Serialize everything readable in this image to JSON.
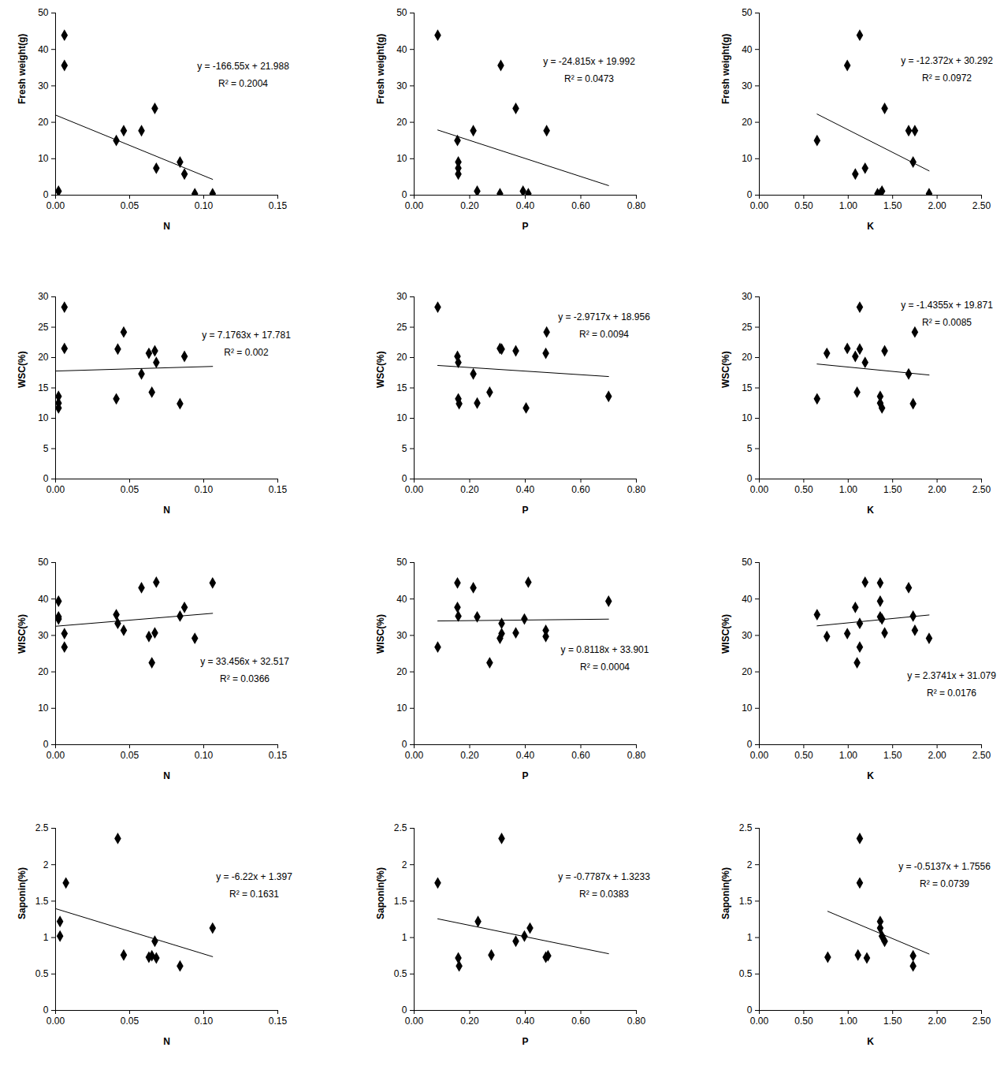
{
  "chart_data": [
    {
      "type": "scatter",
      "x_label": "N",
      "y_label": "Fresh weight(g)",
      "color": "#000000",
      "marker": "diamond",
      "x": [
        0.002,
        0.006,
        0.006,
        0.046,
        0.041,
        0.058,
        0.067,
        0.068,
        0.084,
        0.087,
        0.094,
        0.106
      ],
      "y": [
        1.1,
        43.9,
        35.6,
        17.7,
        15.0,
        17.7,
        23.8,
        7.4,
        9.1,
        5.8,
        0.4,
        0.4
      ],
      "xlim": [
        0,
        0.15
      ],
      "xticks": [
        {
          "value": 0,
          "label": "0.00"
        },
        0.05,
        {
          "value": 0.1,
          "label": "0.10"
        },
        0.15
      ],
      "ylim": [
        0,
        50
      ],
      "yticks": [
        0,
        10,
        20,
        30,
        40,
        50
      ],
      "trendline": {
        "slope": -166.55,
        "intercept": 21.988,
        "x": [
          0,
          0.106
        ]
      },
      "annotations": [
        "y = -166.55x + 21.988",
        "R² = 0.2004"
      ]
    },
    {
      "type": "scatter",
      "x_label": "P",
      "y_label": "Fresh weight(g)",
      "color": "#000000",
      "marker": "diamond",
      "x": [
        0.085,
        0.156,
        0.159,
        0.159,
        0.159,
        0.213,
        0.227,
        0.312,
        0.309,
        0.366,
        0.392,
        0.411,
        0.477
      ],
      "y": [
        43.9,
        15.0,
        9.1,
        7.4,
        5.8,
        17.7,
        1.1,
        35.6,
        0.4,
        23.8,
        1.1,
        0.4,
        17.7
      ],
      "xlim": [
        0,
        0.8
      ],
      "xticks": [
        {
          "value": 0,
          "label": "0.00"
        },
        {
          "value": 0.2,
          "label": "0.20"
        },
        {
          "value": 0.4,
          "label": "0.40"
        },
        {
          "value": 0.6,
          "label": "0.60"
        },
        {
          "value": 0.8,
          "label": "0.80"
        }
      ],
      "ylim": [
        0,
        50
      ],
      "yticks": [
        0,
        10,
        20,
        30,
        40,
        50
      ],
      "trendline": {
        "slope": -24.815,
        "intercept": 19.992,
        "x": [
          0.085,
          0.7
        ]
      },
      "annotations": [
        "y = -24.815x + 19.992",
        "R² = 0.0473"
      ]
    },
    {
      "type": "scatter",
      "x_label": "K",
      "y_label": "Fresh weight(g)",
      "color": "#000000",
      "marker": "diamond",
      "x": [
        0.65,
        0.99,
        1.13,
        1.08,
        1.19,
        1.36,
        1.38,
        1.33,
        1.41,
        1.68,
        1.75,
        1.73,
        1.91
      ],
      "y": [
        15.0,
        35.6,
        43.9,
        5.8,
        7.4,
        0.4,
        1.1,
        0.4,
        23.8,
        17.7,
        17.7,
        9.1,
        0.4
      ],
      "xlim": [
        0,
        2.5
      ],
      "xticks": [
        {
          "value": 0,
          "label": "0.00"
        },
        {
          "value": 0.5,
          "label": "0.50"
        },
        {
          "value": 1,
          "label": "1.00"
        },
        {
          "value": 1.5,
          "label": "1.50"
        },
        {
          "value": 2,
          "label": "2.00"
        },
        {
          "value": 2.5,
          "label": "2.50"
        }
      ],
      "ylim": [
        0,
        50
      ],
      "yticks": [
        0,
        10,
        20,
        30,
        40,
        50
      ],
      "trendline": {
        "slope": -12.372,
        "intercept": 30.292,
        "x": [
          0.65,
          1.91
        ]
      },
      "annotations": [
        "y = -12.372x + 30.292",
        "R² = 0.0972"
      ]
    },
    {
      "type": "scatter",
      "x_label": "N",
      "y_label": "WSC(%)",
      "color": "#000000",
      "marker": "diamond",
      "x": [
        0.002,
        0.002,
        0.002,
        0.006,
        0.006,
        0.041,
        0.042,
        0.046,
        0.058,
        0.063,
        0.065,
        0.067,
        0.068,
        0.084,
        0.087
      ],
      "y": [
        13.6,
        12.5,
        11.7,
        28.3,
        21.5,
        13.2,
        21.4,
        24.2,
        17.3,
        20.7,
        14.3,
        21.1,
        19.2,
        12.4,
        20.2
      ],
      "xlim": [
        0,
        0.15
      ],
      "xticks": [
        {
          "value": 0,
          "label": "0.00"
        },
        0.05,
        {
          "value": 0.1,
          "label": "0.10"
        },
        0.15
      ],
      "ylim": [
        0,
        30
      ],
      "yticks": [
        0,
        5,
        10,
        15,
        20,
        25,
        30
      ],
      "trendline": {
        "slope": 7.1763,
        "intercept": 17.781,
        "x": [
          0,
          0.106
        ]
      },
      "annotations": [
        "y = 7.1763x + 17.781",
        "R² = 0.002"
      ]
    },
    {
      "type": "scatter",
      "x_label": "P",
      "y_label": "WSC(%)",
      "color": "#000000",
      "marker": "diamond",
      "x": [
        0.085,
        0.156,
        0.159,
        0.159,
        0.162,
        0.213,
        0.227,
        0.272,
        0.309,
        0.315,
        0.366,
        0.403,
        0.474,
        0.477,
        0.7
      ],
      "y": [
        28.3,
        20.2,
        19.2,
        13.2,
        12.4,
        17.3,
        12.5,
        14.3,
        21.5,
        21.4,
        21.1,
        11.7,
        20.7,
        24.2,
        13.6
      ],
      "xlim": [
        0,
        0.8
      ],
      "xticks": [
        {
          "value": 0,
          "label": "0.00"
        },
        {
          "value": 0.2,
          "label": "0.20"
        },
        {
          "value": 0.4,
          "label": "0.40"
        },
        {
          "value": 0.6,
          "label": "0.60"
        },
        {
          "value": 0.8,
          "label": "0.80"
        }
      ],
      "ylim": [
        0,
        30
      ],
      "yticks": [
        0,
        5,
        10,
        15,
        20,
        25,
        30
      ],
      "trendline": {
        "slope": -2.9717,
        "intercept": 18.956,
        "x": [
          0.085,
          0.7
        ]
      },
      "annotations": [
        "y = -2.9717x + 18.956",
        "R² = 0.0094"
      ]
    },
    {
      "type": "scatter",
      "x_label": "K",
      "y_label": "WSC(%)",
      "color": "#000000",
      "marker": "diamond",
      "x": [
        0.65,
        0.76,
        0.99,
        1.08,
        1.1,
        1.13,
        1.13,
        1.19,
        1.36,
        1.36,
        1.38,
        1.41,
        1.68,
        1.73,
        1.75
      ],
      "y": [
        13.2,
        20.7,
        21.5,
        20.2,
        14.3,
        28.3,
        21.4,
        19.2,
        13.6,
        12.5,
        11.7,
        21.1,
        17.3,
        12.4,
        24.2
      ],
      "xlim": [
        0,
        2.5
      ],
      "xticks": [
        {
          "value": 0,
          "label": "0.00"
        },
        {
          "value": 0.5,
          "label": "0.50"
        },
        {
          "value": 1,
          "label": "1.00"
        },
        {
          "value": 1.5,
          "label": "1.50"
        },
        {
          "value": 2,
          "label": "2.00"
        },
        {
          "value": 2.5,
          "label": "2.50"
        }
      ],
      "ylim": [
        0,
        30
      ],
      "yticks": [
        0,
        5,
        10,
        15,
        20,
        25,
        30
      ],
      "trendline": {
        "slope": -1.4355,
        "intercept": 19.871,
        "x": [
          0.65,
          1.91
        ]
      },
      "annotations": [
        "y = -1.4355x + 19.871",
        "R² = 0.0085"
      ]
    },
    {
      "type": "scatter",
      "x_label": "N",
      "y_label": "WISC(%)",
      "color": "#000000",
      "marker": "diamond",
      "x": [
        0.002,
        0.002,
        0.002,
        0.006,
        0.006,
        0.041,
        0.042,
        0.046,
        0.058,
        0.063,
        0.065,
        0.067,
        0.068,
        0.084,
        0.087,
        0.094,
        0.106
      ],
      "y": [
        39.4,
        35.1,
        34.5,
        30.5,
        26.8,
        35.7,
        33.3,
        31.4,
        43.1,
        29.7,
        22.5,
        30.7,
        44.6,
        35.3,
        37.7,
        29.2,
        44.4
      ],
      "xlim": [
        0,
        0.15
      ],
      "xticks": [
        {
          "value": 0,
          "label": "0.00"
        },
        0.05,
        {
          "value": 0.1,
          "label": "0.10"
        },
        0.15
      ],
      "ylim": [
        0,
        50
      ],
      "yticks": [
        0,
        10,
        20,
        30,
        40,
        50
      ],
      "trendline": {
        "slope": 33.456,
        "intercept": 32.517,
        "x": [
          0,
          0.106
        ]
      },
      "annotations": [
        "y = 33.456x + 32.517",
        "R² = 0.0366"
      ]
    },
    {
      "type": "scatter",
      "x_label": "P",
      "y_label": "WISC(%)",
      "color": "#000000",
      "marker": "diamond",
      "x": [
        0.085,
        0.156,
        0.156,
        0.159,
        0.213,
        0.227,
        0.272,
        0.309,
        0.315,
        0.315,
        0.366,
        0.397,
        0.411,
        0.474,
        0.474,
        0.7
      ],
      "y": [
        26.8,
        44.4,
        37.7,
        35.3,
        43.1,
        35.1,
        22.5,
        29.2,
        33.3,
        30.5,
        30.7,
        34.5,
        44.6,
        31.4,
        29.7,
        39.4
      ],
      "xlim": [
        0,
        0.8
      ],
      "xticks": [
        {
          "value": 0,
          "label": "0.00"
        },
        {
          "value": 0.2,
          "label": "0.20"
        },
        {
          "value": 0.4,
          "label": "0.40"
        },
        {
          "value": 0.6,
          "label": "0.60"
        },
        {
          "value": 0.8,
          "label": "0.80"
        }
      ],
      "ylim": [
        0,
        50
      ],
      "yticks": [
        0,
        10,
        20,
        30,
        40,
        50
      ],
      "trendline": {
        "slope": 0.8118,
        "intercept": 33.901,
        "x": [
          0.085,
          0.7
        ]
      },
      "annotations": [
        "y = 0.8118x + 33.901",
        "R² = 0.0004"
      ]
    },
    {
      "type": "scatter",
      "x_label": "K",
      "y_label": "WISC(%)",
      "color": "#000000",
      "marker": "diamond",
      "x": [
        0.65,
        0.76,
        0.99,
        1.08,
        1.1,
        1.13,
        1.13,
        1.19,
        1.36,
        1.36,
        1.36,
        1.38,
        1.41,
        1.68,
        1.73,
        1.75,
        1.91
      ],
      "y": [
        35.7,
        29.7,
        30.5,
        37.7,
        22.5,
        26.8,
        33.3,
        44.6,
        44.4,
        39.4,
        35.1,
        34.5,
        30.7,
        43.1,
        35.3,
        31.4,
        29.2
      ],
      "xlim": [
        0,
        2.5
      ],
      "xticks": [
        {
          "value": 0,
          "label": "0.00"
        },
        {
          "value": 0.5,
          "label": "0.50"
        },
        {
          "value": 1,
          "label": "1.00"
        },
        {
          "value": 1.5,
          "label": "1.50"
        },
        {
          "value": 2,
          "label": "2.00"
        },
        {
          "value": 2.5,
          "label": "2.50"
        }
      ],
      "ylim": [
        0,
        50
      ],
      "yticks": [
        0,
        10,
        20,
        30,
        40,
        50
      ],
      "trendline": {
        "slope": 2.3741,
        "intercept": 31.079,
        "x": [
          0.65,
          1.91
        ]
      },
      "annotations": [
        "y = 2.3741x + 31.079",
        "R² = 0.0176"
      ]
    },
    {
      "type": "scatter",
      "x_label": "N",
      "y_label": "Saponin(%)",
      "color": "#000000",
      "marker": "diamond",
      "x": [
        0.003,
        0.003,
        0.007,
        0.042,
        0.046,
        0.063,
        0.065,
        0.067,
        0.068,
        0.084,
        0.106
      ],
      "y": [
        1.22,
        1.02,
        1.75,
        2.36,
        0.76,
        0.73,
        0.75,
        0.95,
        0.72,
        0.61,
        1.13
      ],
      "xlim": [
        0,
        0.15
      ],
      "xticks": [
        {
          "value": 0,
          "label": "0.00"
        },
        0.05,
        {
          "value": 0.1,
          "label": "0.10"
        },
        0.15
      ],
      "ylim": [
        0,
        2.5
      ],
      "yticks": [
        0,
        0.5,
        1,
        1.5,
        2,
        2.5
      ],
      "trendline": {
        "slope": -6.22,
        "intercept": 1.397,
        "x": [
          0,
          0.106
        ]
      },
      "annotations": [
        "y = -6.22x + 1.397",
        "R² = 0.1631"
      ]
    },
    {
      "type": "scatter",
      "x_label": "P",
      "y_label": "Saponin(%)",
      "color": "#000000",
      "marker": "diamond",
      "x": [
        0.085,
        0.159,
        0.162,
        0.23,
        0.278,
        0.315,
        0.366,
        0.397,
        0.417,
        0.474,
        0.482
      ],
      "y": [
        1.75,
        0.72,
        0.61,
        1.22,
        0.76,
        2.36,
        0.95,
        1.02,
        1.13,
        0.73,
        0.75
      ],
      "xlim": [
        0,
        0.8
      ],
      "xticks": [
        {
          "value": 0,
          "label": "0.00"
        },
        {
          "value": 0.2,
          "label": "0.20"
        },
        {
          "value": 0.4,
          "label": "0.40"
        },
        {
          "value": 0.6,
          "label": "0.60"
        },
        {
          "value": 0.8,
          "label": "0.80"
        }
      ],
      "ylim": [
        0,
        2.5
      ],
      "yticks": [
        0,
        0.5,
        1,
        1.5,
        2,
        2.5
      ],
      "trendline": {
        "slope": -0.7787,
        "intercept": 1.3233,
        "x": [
          0.085,
          0.7
        ]
      },
      "annotations": [
        "y = -0.7787x + 1.3233",
        "R² = 0.0383"
      ]
    },
    {
      "type": "scatter",
      "x_label": "K",
      "y_label": "Saponin(%)",
      "color": "#000000",
      "marker": "diamond",
      "x": [
        0.77,
        1.11,
        1.13,
        1.13,
        1.21,
        1.36,
        1.36,
        1.38,
        1.41,
        1.73,
        1.73
      ],
      "y": [
        0.73,
        0.76,
        2.36,
        1.75,
        0.72,
        1.22,
        1.13,
        1.02,
        0.95,
        0.75,
        0.61
      ],
      "xlim": [
        0,
        2.5
      ],
      "xticks": [
        {
          "value": 0,
          "label": "0.00"
        },
        {
          "value": 0.5,
          "label": "0.50"
        },
        {
          "value": 1,
          "label": "1.00"
        },
        {
          "value": 1.5,
          "label": "1.50"
        },
        {
          "value": 2,
          "label": "2.00"
        },
        {
          "value": 2.5,
          "label": "2.50"
        }
      ],
      "ylim": [
        0,
        2.5
      ],
      "yticks": [
        0,
        0.5,
        1,
        1.5,
        2,
        2.5
      ],
      "trendline": {
        "slope": -0.5137,
        "intercept": 1.7556,
        "x": [
          0.77,
          1.91
        ]
      },
      "annotations": [
        "y = -0.5137x + 1.7556",
        "R² = 0.0739"
      ]
    }
  ]
}
